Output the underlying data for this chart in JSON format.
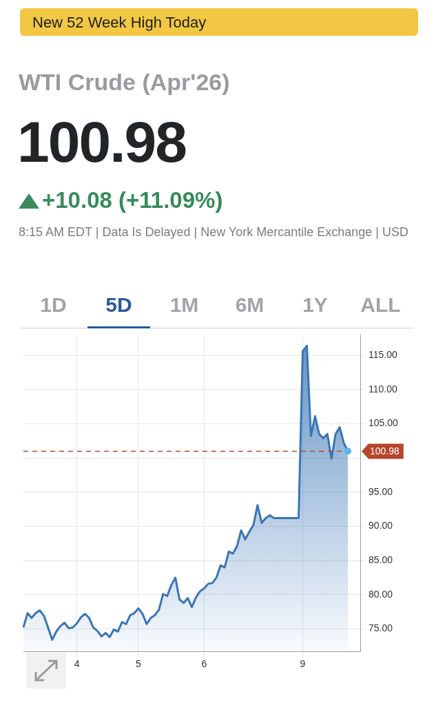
{
  "chart_data": {
    "type": "area",
    "title": "WTI Crude (Apr'26)",
    "annotations": [
      "New 52 Week High Today",
      "100.98",
      "+10.08 (+11.09%)",
      "8:15 AM EDT | Data Is Delayed | New York Mercantile Exchange | USD",
      "1D",
      "5D",
      "1M",
      "6M",
      "1Y",
      "ALL"
    ],
    "categories": [
      null,
      null,
      null,
      null,
      null,
      null,
      null,
      null,
      null,
      null,
      null,
      null,
      null,
      "4",
      null,
      null,
      null,
      null,
      null,
      null,
      null,
      null,
      null,
      null,
      null,
      null,
      null,
      null,
      "5",
      null,
      null,
      null,
      null,
      null,
      null,
      null,
      null,
      null,
      null,
      null,
      null,
      null,
      null,
      null,
      "6",
      null,
      null,
      null,
      null,
      null,
      null,
      null,
      null,
      null,
      null,
      null,
      null,
      null,
      null,
      null,
      null,
      null,
      null,
      null,
      null,
      null,
      null,
      null,
      "9",
      null,
      null,
      null,
      null,
      null,
      null,
      null,
      null,
      null,
      null,
      null,
      null,
      null,
      null
    ],
    "series": [
      {
        "color": "#3a75b5",
        "values": [
          75.2,
          77.3,
          76.6,
          77.3,
          77.7,
          76.9,
          75.2,
          73.4,
          74.6,
          75.4,
          75.9,
          75.1,
          75.2,
          75.8,
          76.7,
          77.2,
          76.6,
          75.2,
          74.7,
          73.9,
          74.4,
          73.8,
          74.9,
          74.6,
          76.0,
          75.7,
          77.0,
          77.3,
          78.0,
          77.2,
          75.7,
          76.6,
          77.0,
          77.8,
          80.1,
          79.8,
          81.4,
          82.5,
          79.3,
          78.8,
          79.5,
          78.2,
          79.6,
          80.5,
          80.9,
          81.6,
          81.7,
          82.5,
          84.3,
          84.0,
          86.3,
          86.0,
          87.1,
          89.4,
          88.1,
          89.2,
          90.2,
          93.1,
          90.5,
          91.2,
          91.6,
          91.2,
          91.2,
          91.2,
          91.2,
          91.2,
          91.2,
          91.2,
          115.6,
          116.4,
          103.2,
          106.1,
          103.5,
          102.9,
          103.5,
          99.9,
          103.5,
          104.5,
          102.2,
          101.0,
          null,
          null,
          null
        ]
      }
    ],
    "ylim": [
      71.7,
      118
    ],
    "yticks": [
      {
        "value": 75,
        "label": "75.00"
      },
      {
        "value": 80,
        "label": "80.00"
      },
      {
        "value": 85,
        "label": "85.00"
      },
      {
        "value": 90,
        "label": "90.00"
      },
      {
        "value": 95,
        "label": "95.00"
      },
      {
        "value": 100,
        "label": null
      },
      {
        "value": 105,
        "label": "105.00"
      },
      {
        "value": 110,
        "label": "110.00"
      },
      {
        "value": 115,
        "label": "115.00"
      }
    ],
    "ref_lines": [
      {
        "axis": "y",
        "value": 100.98,
        "label": "100.98",
        "color": "#b5452a",
        "line_style": "dashed"
      }
    ],
    "grid": true,
    "legend": false
  }
}
